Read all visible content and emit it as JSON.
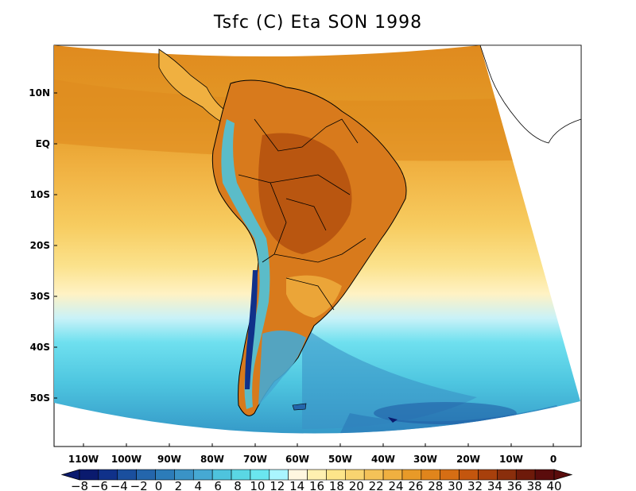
{
  "title": "Tsfc (C) Eta SON 1998",
  "lat_labels": [
    "10N",
    "EQ",
    "10S",
    "20S",
    "30S",
    "40S",
    "50S"
  ],
  "lon_labels": [
    "110W",
    "100W",
    "90W",
    "80W",
    "70W",
    "60W",
    "50W",
    "40W",
    "30W",
    "20W",
    "10W",
    "0"
  ],
  "colorbar": {
    "labels": [
      "-8",
      "-6",
      "-4",
      "-2",
      "0",
      "2",
      "4",
      "6",
      "8",
      "10",
      "12",
      "14",
      "16",
      "18",
      "20",
      "22",
      "24",
      "26",
      "28",
      "30",
      "32",
      "34",
      "36",
      "38",
      "40"
    ],
    "colors": [
      "#0a1a6e",
      "#10318a",
      "#1a4f9e",
      "#2466ac",
      "#2c7cb9",
      "#3a93c6",
      "#46a9d3",
      "#4ec3dd",
      "#5ad7e4",
      "#6ae6ef",
      "#aaf5ff",
      "#fff6e0",
      "#fff0b0",
      "#fde58a",
      "#f8d470",
      "#f4c258",
      "#f0b040",
      "#e89a28",
      "#e0851c",
      "#d66e14",
      "#c4560e",
      "#a8400c",
      "#8a2e0c",
      "#6e1a0a",
      "#5a0c0c"
    ]
  },
  "colors": {
    "land_hot": "#c4560e",
    "ocean_warm": "#e39a27",
    "ocean_cold": "#45b3d6",
    "border": "#000000"
  }
}
